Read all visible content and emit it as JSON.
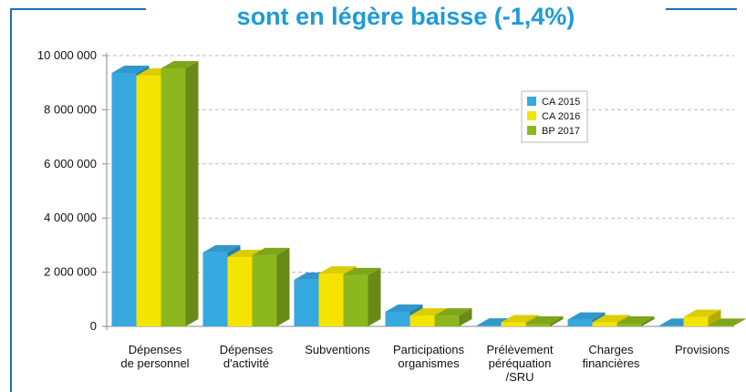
{
  "chart_data": {
    "type": "bar3d",
    "title": "sont en légère baisse (-1,4%)",
    "categories": [
      [
        "Dépenses",
        "de personnel"
      ],
      [
        "Dépenses",
        "d'activité"
      ],
      [
        "Subventions"
      ],
      [
        "Participations",
        "organismes"
      ],
      [
        "Prélèvement",
        "péréquation",
        "/SRU"
      ],
      [
        "Charges",
        "financières"
      ],
      [
        "Provisions"
      ]
    ],
    "series": [
      {
        "name": "CA 2015",
        "color": "#36a9e1",
        "values": [
          9360000,
          2730000,
          1720000,
          540000,
          30000,
          250000,
          20000
        ]
      },
      {
        "name": "CA 2016",
        "color": "#f5e400",
        "values": [
          9260000,
          2560000,
          1950000,
          400000,
          150000,
          150000,
          350000
        ]
      },
      {
        "name": "BP 2017",
        "color": "#8cb81e",
        "values": [
          9530000,
          2630000,
          1890000,
          400000,
          100000,
          100000,
          20000
        ]
      }
    ],
    "ylim": [
      0,
      10000000
    ],
    "yticks": [
      0,
      {
        "value": 2000000,
        "label": "2 000 000"
      },
      {
        "value": 4000000,
        "label": "4 000 000"
      },
      {
        "value": 6000000,
        "label": "6 000 000"
      },
      {
        "value": 8000000,
        "label": "8 000 000"
      },
      {
        "value": 10000000,
        "label": "10 000 000"
      }
    ],
    "grid": true,
    "legend": "upper right"
  }
}
